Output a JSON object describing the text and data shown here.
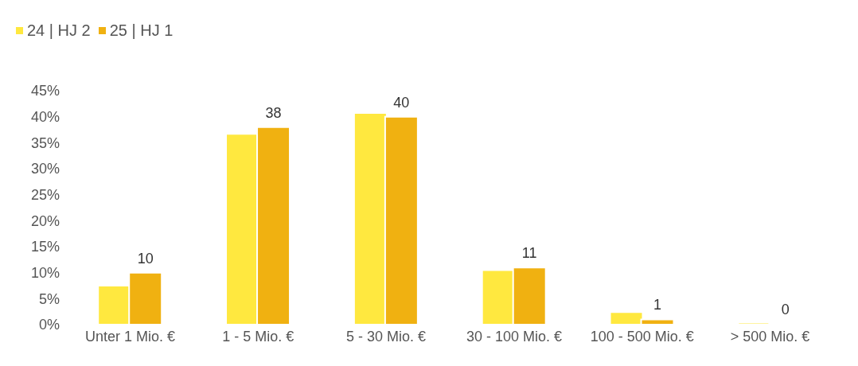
{
  "chart_data": {
    "type": "bar",
    "categories": [
      "Unter 1 Mio. €",
      "1 - 5 Mio. €",
      "5 - 30 Mio. €",
      "30 - 100 Mio. €",
      "100 - 500 Mio. €",
      "> 500 Mio. €"
    ],
    "series": [
      {
        "name": "24 | HJ 2",
        "color": "#ffe83f",
        "values": [
          7.5,
          36.7,
          40.7,
          10.5,
          2.4,
          0.4
        ]
      },
      {
        "name": "25 | HJ 1",
        "color": "#f0b111",
        "values": [
          10,
          38,
          40,
          11,
          1,
          0
        ],
        "value_labels": [
          "10",
          "38",
          "40",
          "11",
          "1",
          "0"
        ]
      }
    ],
    "ylim": [
      0,
      45
    ],
    "yticks": [
      {
        "value": 0,
        "label": "0%"
      },
      {
        "value": 5,
        "label": "5%"
      },
      {
        "value": 10,
        "label": "10%"
      },
      {
        "value": 15,
        "label": "15%"
      },
      {
        "value": 20,
        "label": "20%"
      },
      {
        "value": 25,
        "label": "25%"
      },
      {
        "value": 30,
        "label": "30%"
      },
      {
        "value": 35,
        "label": "35%"
      },
      {
        "value": 40,
        "label": "40%"
      },
      {
        "value": 45,
        "label": "45%"
      }
    ],
    "grid": false,
    "legend": "top left"
  }
}
